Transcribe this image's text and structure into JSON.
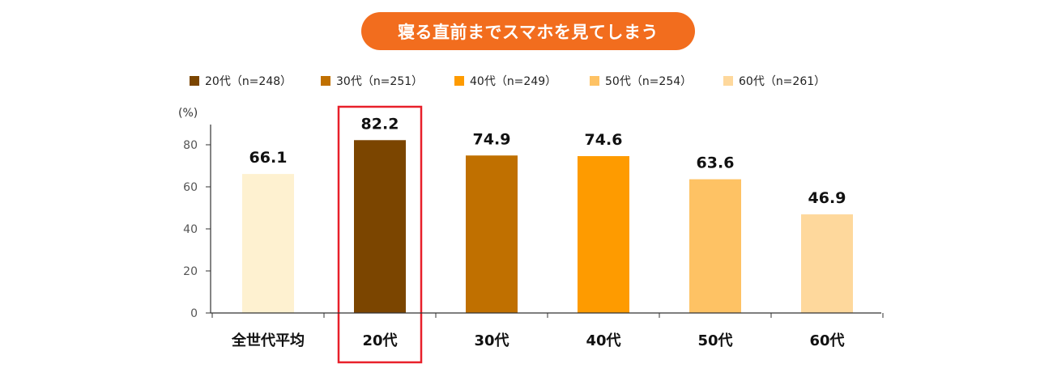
{
  "title": "寝る直前までスマホを見てしまう",
  "legend": [
    {
      "label": "20代（n=248）",
      "color": "#7b4500"
    },
    {
      "label": "30代（n=251）",
      "color": "#c07000"
    },
    {
      "label": "40代（n=249）",
      "color": "#fe9b00"
    },
    {
      "label": "50代（n=254）",
      "color": "#fec264"
    },
    {
      "label": "60代（n=261）",
      "color": "#fed89c"
    }
  ],
  "chart_data": {
    "type": "bar",
    "title": "寝る直前までスマホを見てしまう",
    "ylabel": "(%)",
    "xlabel": "",
    "ylim": [
      0,
      90
    ],
    "yticks": [
      0,
      20,
      40,
      60,
      80
    ],
    "categories": [
      "全世代平均",
      "20代",
      "30代",
      "40代",
      "50代",
      "60代"
    ],
    "values": [
      66.1,
      82.2,
      74.9,
      74.6,
      63.6,
      46.9
    ],
    "value_labels": [
      "66.1",
      "82.2",
      "74.9",
      "74.6",
      "63.6",
      "46.9"
    ],
    "colors": [
      "#fef1d0",
      "#7b4500",
      "#c07000",
      "#fe9b00",
      "#fec264",
      "#fed89c"
    ],
    "highlighted_category": "20代",
    "highlight_color": "#e8202a",
    "grid": false,
    "legend_position": "top"
  }
}
